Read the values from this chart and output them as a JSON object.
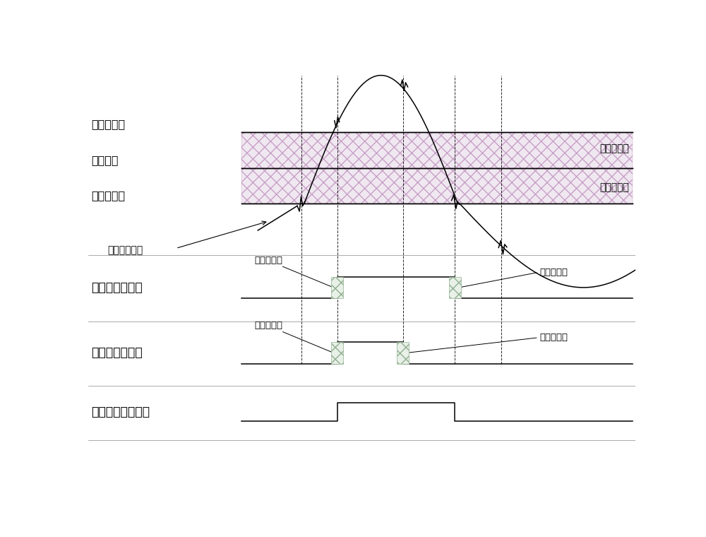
{
  "fig_width": 10.0,
  "fig_height": 7.6,
  "bg_color": "#ffffff",
  "line_color": "#000000",
  "upper_thresh_label": "上迟滞阈値",
  "trigger_label": "触发阈値",
  "lower_thresh_label": "下迟滞阈値",
  "upper_zone_label": "上迟滞区域",
  "lower_zone_label": "下迟滞区域",
  "signal_label": "触发输入信号",
  "lower_comp_label": "下迟滞阈値比较",
  "upper_comp_label": "上迟滞阈値比较",
  "pulse_latch_label": "脉冲锁存模块输出",
  "lower_comp_zone_label_left": "下迟滞区域",
  "lower_comp_zone_label_right": "下迟滞区域",
  "upper_comp_zone_label_left": "上迟滞区域",
  "upper_comp_zone_label_right": "上迟滞区域"
}
